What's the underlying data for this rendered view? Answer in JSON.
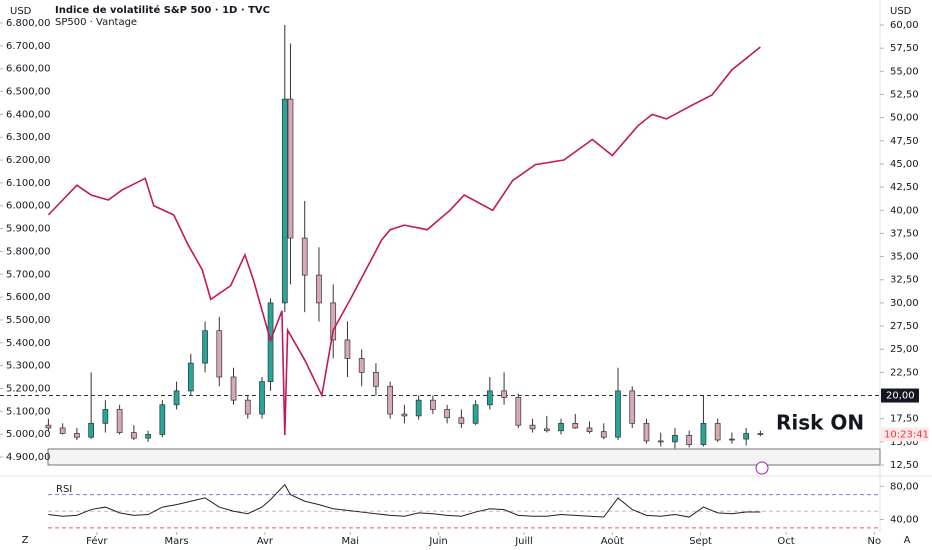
{
  "chart_data": [
    {
      "type": "candlestick",
      "title": "Indice de volatilité S&P 500 · 1D · TVC",
      "y_label": "USD",
      "y2_label": "USD",
      "corner_labels": [
        "Z",
        "A"
      ],
      "annotation": "Risk ON",
      "time_label": "10:23:41",
      "xlim": [
        -2,
        307
      ],
      "xticks": [
        {
          "value": 32,
          "label": "Févr"
        },
        {
          "value": 60,
          "label": "Mars"
        },
        {
          "value": 91,
          "label": "Avr"
        },
        {
          "value": 121,
          "label": "Mai"
        },
        {
          "value": 152,
          "label": "Juin"
        },
        {
          "value": 182,
          "label": "Juill"
        },
        {
          "value": 213,
          "label": "Août"
        },
        {
          "value": 244,
          "label": "Sept"
        },
        {
          "value": 274,
          "label": "Oct"
        },
        {
          "value": 305,
          "label": "No"
        }
      ],
      "ylim": [
        4900,
        6800
      ],
      "yticks": [
        {
          "value": 4900,
          "label": "4.900,00"
        },
        {
          "value": 5000,
          "label": "5.000,00"
        },
        {
          "value": 5100,
          "label": "5.100,00"
        },
        {
          "value": 5200,
          "label": "5.200,00"
        },
        {
          "value": 5300,
          "label": "5.300,00"
        },
        {
          "value": 5400,
          "label": "5.400,00"
        },
        {
          "value": 5500,
          "label": "5.500,00"
        },
        {
          "value": 5600,
          "label": "5.600,00"
        },
        {
          "value": 5700,
          "label": "5.700,00"
        },
        {
          "value": 5800,
          "label": "5.800,00"
        },
        {
          "value": 5900,
          "label": "5.900,00"
        },
        {
          "value": 6000,
          "label": "6.000,00"
        },
        {
          "value": 6100,
          "label": "6.100,00"
        },
        {
          "value": 6200,
          "label": "6.200,00"
        },
        {
          "value": 6300,
          "label": "6.300,00"
        },
        {
          "value": 6400,
          "label": "6.400,00"
        },
        {
          "value": 6500,
          "label": "6.500,00"
        },
        {
          "value": 6600,
          "label": "6.600,00"
        },
        {
          "value": 6700,
          "label": "6.700,00"
        },
        {
          "value": 6800,
          "label": "6.800,00"
        }
      ],
      "y2lim": [
        12.5,
        60
      ],
      "y2ticks": [
        {
          "value": 12.5,
          "label": "12,50"
        },
        {
          "value": 15,
          "label": "15,00"
        },
        {
          "value": 17.5,
          "label": "17,50"
        },
        {
          "value": 22.5,
          "label": "22,50"
        },
        {
          "value": 25,
          "label": "25,00"
        },
        {
          "value": 27.5,
          "label": "27,50"
        },
        {
          "value": 30,
          "label": "30,00"
        },
        {
          "value": 32.5,
          "label": "32,50"
        },
        {
          "value": 35,
          "label": "35,00"
        },
        {
          "value": 37.5,
          "label": "37,50"
        },
        {
          "value": 40,
          "label": "40,00"
        },
        {
          "value": 42.5,
          "label": "42,50"
        },
        {
          "value": 45,
          "label": "45,00"
        },
        {
          "value": 47.5,
          "label": "47,50"
        },
        {
          "value": 50,
          "label": "50,00"
        },
        {
          "value": 52.5,
          "label": "52,50"
        },
        {
          "value": 55,
          "label": "55,00"
        },
        {
          "value": 57.5,
          "label": "57,50"
        },
        {
          "value": 60,
          "label": "60,00"
        }
      ],
      "reference_line": {
        "value": 20,
        "label": "20,00"
      },
      "candles": {
        "axis": "y2",
        "up_color": "#26a69a",
        "down_color": "#d7a7b3",
        "x": [
          15,
          20,
          25,
          30,
          35,
          40,
          45,
          50,
          55,
          60,
          65,
          70,
          75,
          80,
          85,
          90,
          93,
          98,
          100,
          105,
          110,
          115,
          120,
          125,
          130,
          135,
          140,
          145,
          150,
          155,
          160,
          165,
          170,
          175,
          180,
          185,
          190,
          195,
          200,
          205,
          210,
          215,
          220,
          225,
          230,
          235,
          240,
          245,
          250,
          255,
          260,
          265
        ],
        "ohlc": [
          [
            16.8,
            17.5,
            16.2,
            16.5
          ],
          [
            16.5,
            17,
            15.8,
            15.9
          ],
          [
            15.9,
            16.5,
            15.2,
            15.5
          ],
          [
            15.5,
            22.5,
            15.3,
            17
          ],
          [
            17,
            19.5,
            16,
            18.5
          ],
          [
            18.5,
            19,
            15.8,
            16
          ],
          [
            16,
            16.8,
            15.2,
            15.4
          ],
          [
            15.4,
            16.2,
            15,
            15.8
          ],
          [
            15.8,
            19.5,
            15.5,
            19
          ],
          [
            19,
            21.5,
            18.5,
            20.5
          ],
          [
            20.5,
            24.5,
            20,
            23.5
          ],
          [
            23.5,
            28,
            22.5,
            27
          ],
          [
            27,
            28.5,
            21,
            22
          ],
          [
            22,
            23,
            19,
            19.5
          ],
          [
            19.5,
            20,
            17.5,
            18
          ],
          [
            18,
            22,
            17.5,
            21.5
          ],
          [
            21.5,
            30.5,
            20.5,
            30
          ],
          [
            30,
            60,
            29,
            52
          ],
          [
            52,
            58,
            32,
            37
          ],
          [
            37,
            41,
            29,
            33
          ],
          [
            33,
            36,
            28,
            30
          ],
          [
            30,
            32,
            24,
            26
          ],
          [
            26,
            28,
            22,
            24
          ],
          [
            24,
            25,
            21,
            22.5
          ],
          [
            22.5,
            23.5,
            20,
            21
          ],
          [
            21,
            21.5,
            17.5,
            18
          ],
          [
            18,
            19,
            17,
            17.8
          ],
          [
            17.8,
            20,
            17.4,
            19.5
          ],
          [
            19.5,
            20,
            18,
            18.5
          ],
          [
            18.5,
            19,
            17,
            17.6
          ],
          [
            17.6,
            18.5,
            16.5,
            17
          ],
          [
            17,
            19.5,
            16.8,
            19
          ],
          [
            19,
            22,
            18.5,
            20.5
          ],
          [
            20.5,
            22.5,
            19,
            19.8
          ],
          [
            19.8,
            20.2,
            16.5,
            16.8
          ],
          [
            16.8,
            17.5,
            16,
            16.4
          ],
          [
            16.4,
            17.8,
            16,
            16.2
          ],
          [
            16.2,
            17.5,
            15.8,
            17
          ],
          [
            17,
            18,
            16.4,
            16.5
          ],
          [
            16.5,
            17.2,
            15.9,
            16.1
          ],
          [
            16.1,
            17,
            15.3,
            15.5
          ],
          [
            15.5,
            23,
            15.2,
            20.5
          ],
          [
            20.5,
            21,
            16.5,
            17
          ],
          [
            17,
            17.5,
            14.8,
            15.1
          ],
          [
            15.1,
            16,
            14.5,
            15
          ],
          [
            15,
            16.5,
            14.3,
            15.7
          ],
          [
            15.7,
            16.2,
            14.4,
            14.7
          ],
          [
            14.7,
            20,
            14.5,
            17
          ],
          [
            17,
            17.5,
            15,
            15.2
          ],
          [
            15.2,
            16,
            14.8,
            15.3
          ],
          [
            15.3,
            16.5,
            14.6,
            15.9
          ],
          [
            15.9,
            16.2,
            15.6,
            15.8
          ]
        ]
      },
      "series": [
        {
          "name": "SP500 · Vantage",
          "color": "#c2185b",
          "x": [
            15,
            25,
            30,
            36,
            41,
            49,
            52,
            59,
            64,
            69,
            72,
            79,
            84,
            87,
            93,
            97,
            98,
            99,
            105,
            111,
            115,
            121,
            132,
            135,
            140,
            148,
            156,
            161,
            171,
            178,
            186,
            196,
            206,
            213,
            222,
            227,
            232,
            241,
            248,
            255,
            265
          ],
          "values": [
            5960,
            6090,
            6047,
            6025,
            6070,
            6120,
            6000,
            5960,
            5830,
            5720,
            5590,
            5650,
            5785,
            5675,
            5410,
            5540,
            4996,
            5455,
            5325,
            5170,
            5455,
            5590,
            5850,
            5895,
            5915,
            5895,
            5980,
            6047,
            5980,
            6110,
            6180,
            6200,
            6290,
            6220,
            6350,
            6400,
            6380,
            6440,
            6485,
            6595,
            6695
          ]
        }
      ]
    },
    {
      "type": "line",
      "title": "RSI",
      "ylim": [
        25,
        90
      ],
      "yticks": [
        {
          "value": 40,
          "label": "40,00"
        },
        {
          "value": 80,
          "label": "80,00"
        }
      ],
      "bands": [
        {
          "value": 70,
          "color": "#7b7fd4"
        },
        {
          "value": 50,
          "color": "#bbbbbb"
        },
        {
          "value": 30,
          "color": "#e05a6a"
        }
      ],
      "series": [
        {
          "color": "#222222",
          "x": [
            15,
            20,
            25,
            30,
            35,
            40,
            45,
            50,
            55,
            60,
            65,
            70,
            75,
            80,
            85,
            90,
            93,
            98,
            100,
            105,
            110,
            115,
            120,
            125,
            130,
            135,
            140,
            145,
            150,
            155,
            160,
            165,
            170,
            175,
            180,
            185,
            190,
            195,
            200,
            205,
            210,
            215,
            220,
            225,
            230,
            235,
            240,
            245,
            250,
            255,
            260,
            265
          ],
          "values": [
            46,
            44,
            45,
            52,
            55,
            48,
            45,
            46,
            55,
            58,
            62,
            66,
            55,
            50,
            47,
            55,
            64,
            82,
            70,
            62,
            58,
            53,
            51,
            49,
            47,
            45,
            44,
            48,
            47,
            45,
            44,
            49,
            53,
            52,
            45,
            44,
            44,
            46,
            45,
            44,
            43,
            66,
            52,
            45,
            44,
            46,
            43,
            55,
            48,
            47,
            49,
            49
          ]
        }
      ]
    }
  ]
}
